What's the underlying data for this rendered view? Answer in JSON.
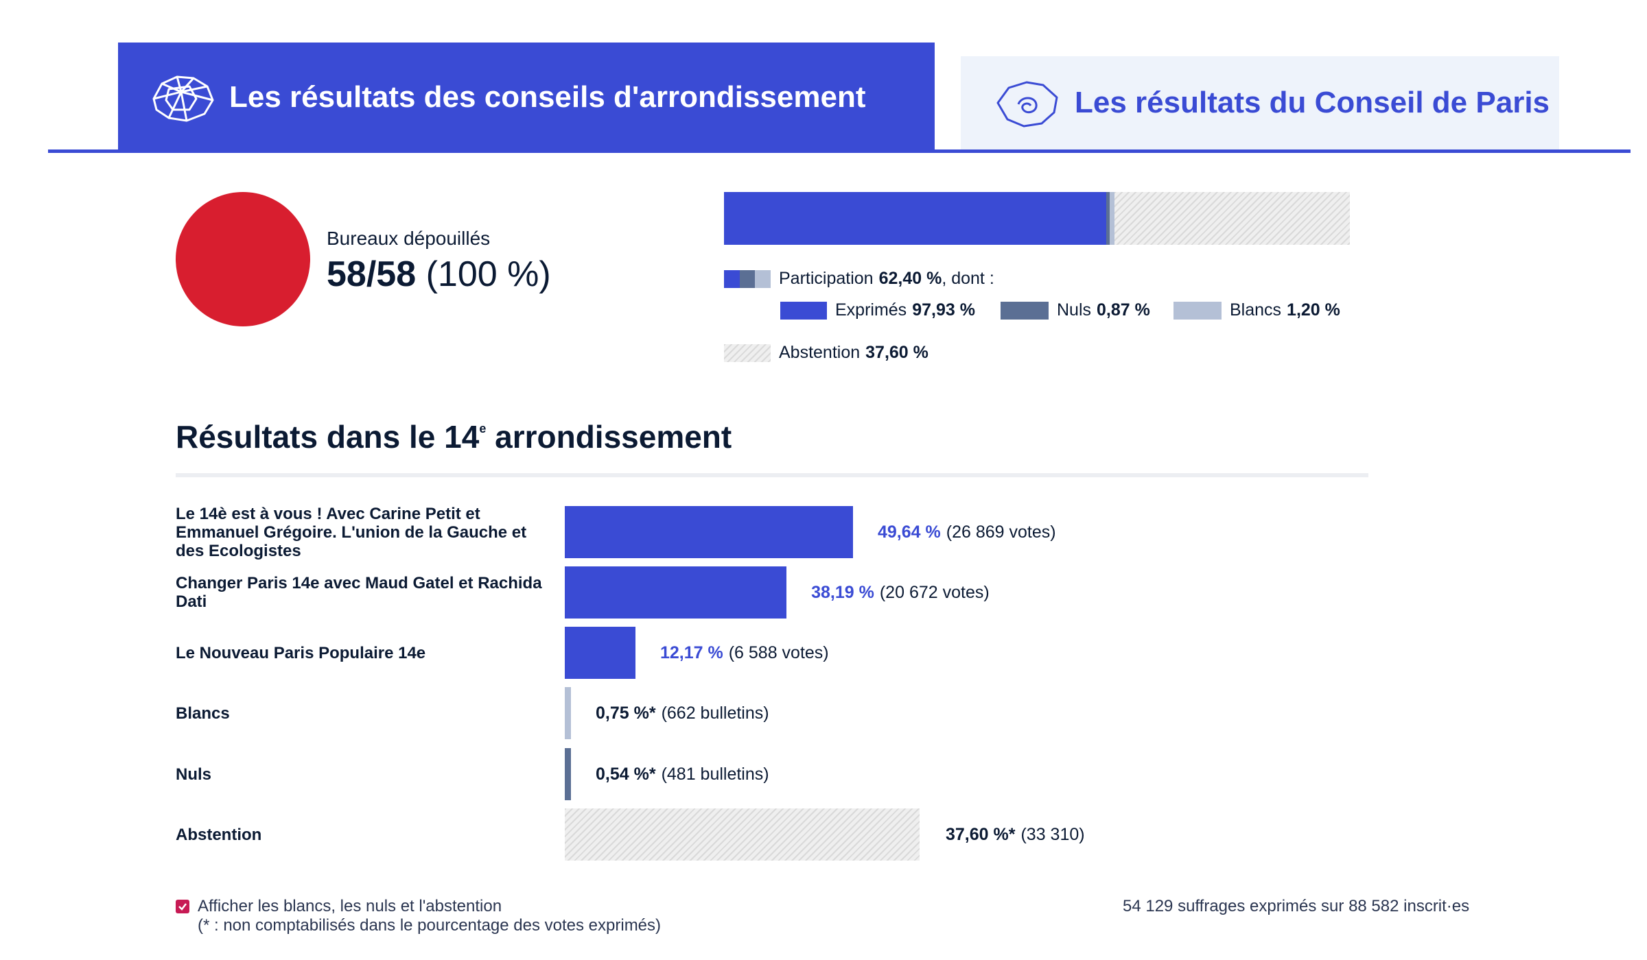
{
  "tabs": [
    {
      "label": "Les résultats des conseils d'arrondissement",
      "icon": "arrondissements-map-icon",
      "active": true
    },
    {
      "label": "Les résultats du Conseil de Paris",
      "icon": "paris-map-icon",
      "active": false
    }
  ],
  "status": {
    "label": "Bureaux dépouillés",
    "count": "58/58",
    "percent": "(100 %)",
    "color": "#d81e2f"
  },
  "participation": {
    "participation_label": "Participation",
    "participation_value": "62,40 %",
    "participation_suffix": ", dont :",
    "exprimes_label": "Exprimés",
    "exprimes_value": "97,93 %",
    "nuls_label": "Nuls",
    "nuls_value": "0,87 %",
    "blancs_label": "Blancs",
    "blancs_value": "1,20 %",
    "abstention_label": "Abstention",
    "abstention_value": "37,60 %",
    "colors": {
      "exprimes": "#3a4bd4",
      "nuls": "#5b6f94",
      "blancs": "#b4c0d6"
    }
  },
  "results": {
    "title": "Résultats dans le 14",
    "title_sup": "e",
    "title_suffix": " arrondissement"
  },
  "chart_data": {
    "type": "bar",
    "orientation": "horizontal",
    "title": "Résultats dans le 14e arrondissement",
    "categories": [
      "Le 14è est à vous ! Avec Carine Petit et Emmanuel Grégoire. L'union de la Gauche et des Ecologistes",
      "Changer Paris 14e avec Maud Gatel et Rachida Dati",
      "Le Nouveau Paris Populaire 14e",
      "Blancs",
      "Nuls",
      "Abstention"
    ],
    "values": [
      49.64,
      38.19,
      12.17,
      0.75,
      0.54,
      37.6
    ],
    "pct_labels": [
      "49,64 %",
      "38,19 %",
      "12,17 %",
      "0,75 %*",
      "0,54 %*",
      "37,60 %*"
    ],
    "count_labels": [
      "(26 869 votes)",
      "(20 672 votes)",
      "(6 588 votes)",
      "(662 bulletins)",
      "(481 bulletins)",
      "(33 310)"
    ],
    "kinds": [
      "list",
      "list",
      "list",
      "blancs",
      "nuls",
      "abstention"
    ],
    "colors": {
      "list": "#3a4bd4",
      "blancs": "#b4c0d6",
      "nuls": "#5b6f94"
    }
  },
  "footer": {
    "checkbox_label": "Afficher les blancs, les nuls et l'abstention",
    "checkbox_checked": true,
    "note": "(* : non comptabilisés dans le pourcentage des votes exprimés)",
    "stats": "54 129 suffrages exprimés sur 88 582 inscrit·es"
  }
}
